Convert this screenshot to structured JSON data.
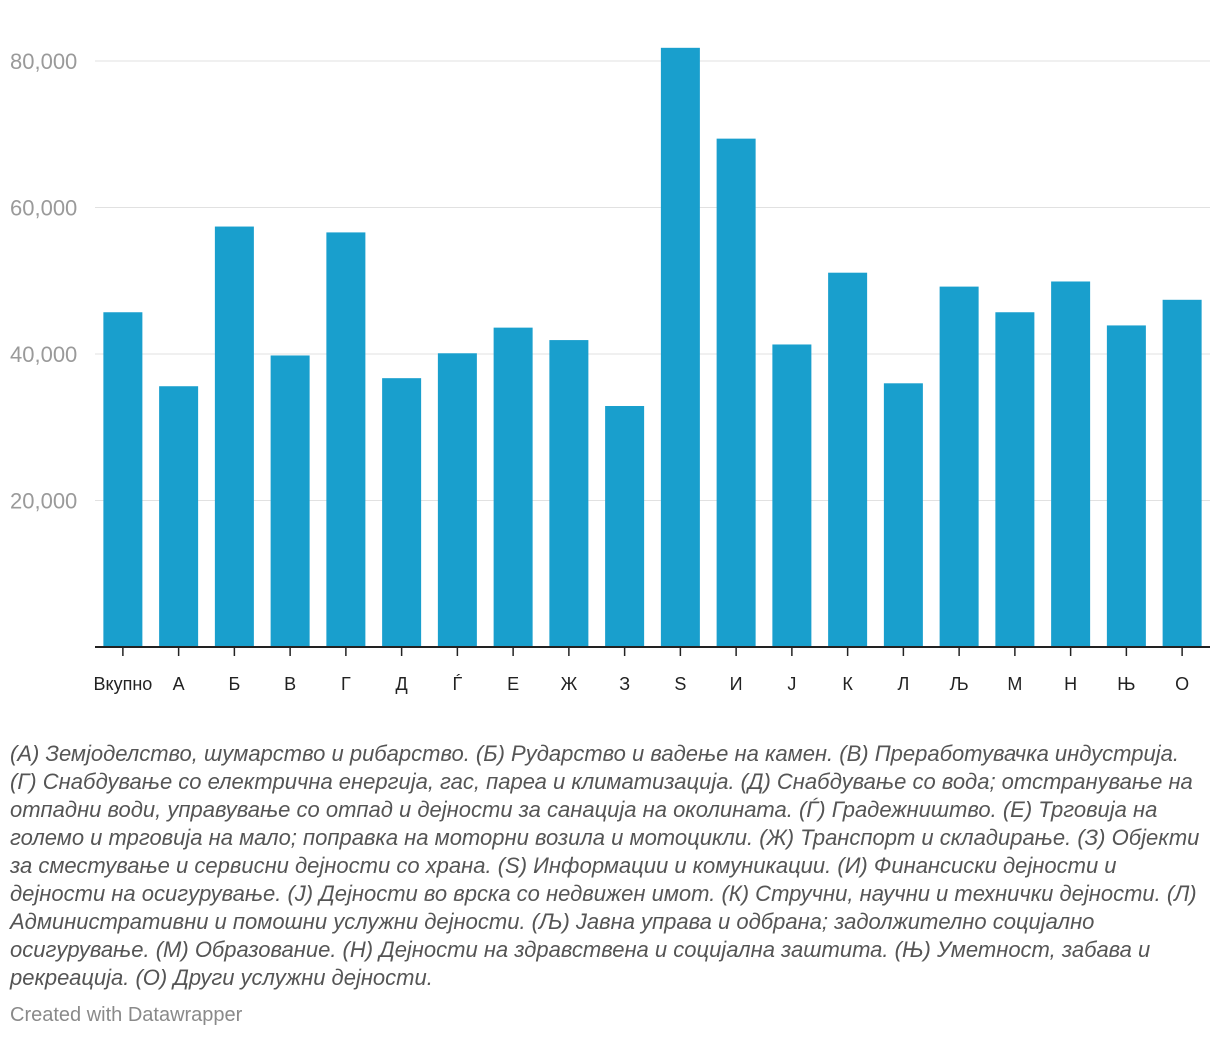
{
  "chart_data": {
    "type": "bar",
    "categories": [
      "Вкупно",
      "А",
      "Б",
      "В",
      "Г",
      "Д",
      "Ѓ",
      "Е",
      "Ж",
      "З",
      "S",
      "И",
      "Ј",
      "К",
      "Л",
      "Љ",
      "М",
      "Н",
      "Њ",
      "О"
    ],
    "values": [
      45700,
      35600,
      57400,
      39800,
      56600,
      36700,
      40100,
      43600,
      41900,
      32900,
      81800,
      69400,
      41300,
      51100,
      36000,
      49200,
      45700,
      49900,
      43900,
      47400
    ],
    "yticks": [
      20000,
      40000,
      60000,
      80000
    ],
    "ytick_labels": [
      "20,000",
      "40,000",
      "60,000",
      "80,000"
    ],
    "ylim": [
      0,
      82000
    ],
    "grid": true,
    "bar_color": "#199fcd"
  },
  "footnote": "(А) Земјоделство, шумарство и рибарство. (Б) Рударство и вадење на камен. (В) Преработувачка индустрија. (Г) Снабдување со електрична енергија, гас, пареа и климатизација. (Д) Снабдување со вода; отстранување на отпадни води, управување со отпад и дејности за санација на околината. (Ѓ) Градежништво. (Е) Трговија на големо и трговија на мало; поправка на моторни возила и мотоцикли. (Ж) Транспорт и складирање. (З) Објекти за сместување и сервисни дејности со храна. (S) Информации и комуникации. (И) Финансиски дејности и дејности на осигурување. (Ј) Дејности во врска со недвижен имот. (К) Стручни, научни и технички дејности. (Л) Административни и помошни услужни дејности. (Љ) Јавна управа и одбрана; задолжително социјално осигурување. (М) Образование. (Н) Дејности на здравствена и социјална заштита. (Њ) Уметност, забава и рекреација. (О) Други услужни дејности.",
  "credit": "Created with Datawrapper"
}
